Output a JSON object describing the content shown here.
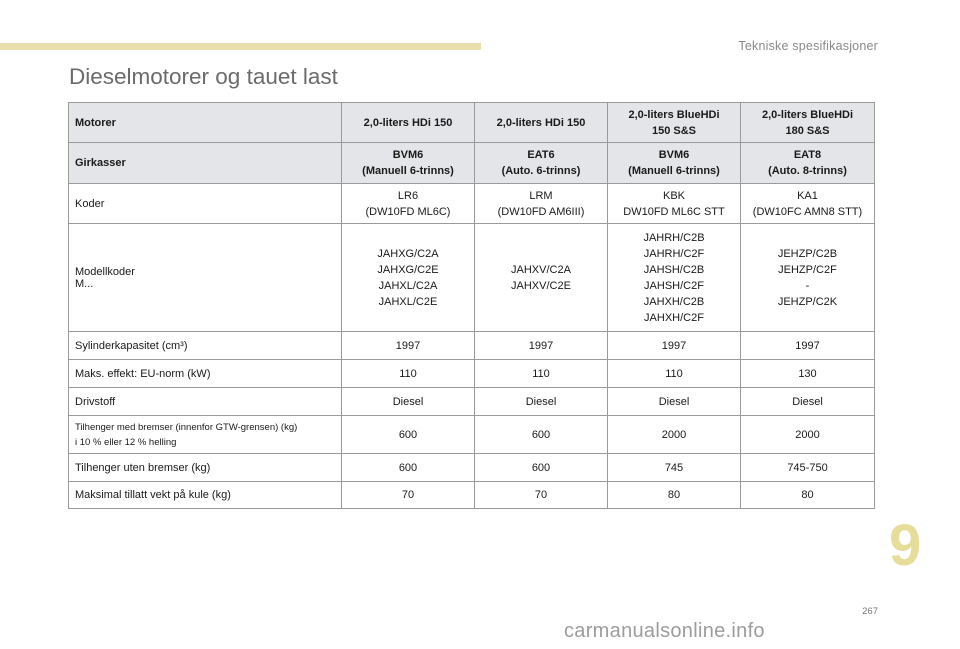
{
  "header": {
    "section_label": "Tekniske spesifikasjoner",
    "title": "Dieselmotorer og tauet last"
  },
  "table": {
    "header_rows": [
      {
        "label": "Motorer",
        "cells": [
          "2,0-liters HDi 150",
          "2,0-liters HDi 150",
          "2,0-liters BlueHDi\n150 S&S",
          "2,0-liters BlueHDi\n180 S&S"
        ]
      },
      {
        "label": "Girkasser",
        "cells": [
          "BVM6\n(Manuell 6-trinns)",
          "EAT6\n(Auto. 6-trinns)",
          "BVM6\n(Manuell 6-trinns)",
          "EAT8\n(Auto. 8-trinns)"
        ]
      }
    ],
    "rows": [
      {
        "label": "Koder",
        "cells": [
          "LR6\n(DW10FD ML6C)",
          "LRM\n(DW10FD AM6III)",
          "KBK\nDW10FD ML6C STT",
          "KA1\n(DW10FC AMN8 STT)"
        ]
      },
      {
        "label": "Modellkoder\nM...",
        "cells": [
          "JAHXG/C2A\nJAHXG/C2E\nJAHXL/C2A\nJAHXL/C2E",
          "JAHXV/C2A\nJAHXV/C2E",
          "JAHRH/C2B\nJAHRH/C2F\nJAHSH/C2B\nJAHSH/C2F\nJAHXH/C2B\nJAHXH/C2F",
          "JEHZP/C2B\nJEHZP/C2F\n-\nJEHZP/C2K"
        ]
      },
      {
        "label": "Sylinderkapasitet (cm³)",
        "cells": [
          "1997",
          "1997",
          "1997",
          "1997"
        ]
      },
      {
        "label": "Maks. effekt: EU-norm (kW)",
        "cells": [
          "110",
          "110",
          "110",
          "130"
        ]
      },
      {
        "label": "Drivstoff",
        "cells": [
          "Diesel",
          "Diesel",
          "Diesel",
          "Diesel"
        ]
      },
      {
        "label": "Tilhenger med bremser (innenfor GTW-grensen) (kg)\ni 10 % eller 12 % helling",
        "cells": [
          "600",
          "600",
          "2000",
          "2000"
        ]
      },
      {
        "label": "Tilhenger uten bremser (kg)",
        "cells": [
          "600",
          "600",
          "745",
          "745-750"
        ]
      },
      {
        "label": "Maksimal tillatt vekt på kule (kg)",
        "cells": [
          "70",
          "70",
          "80",
          "80"
        ]
      }
    ]
  },
  "footer": {
    "chapter_number": "9",
    "page_number": "267",
    "watermark": "carmanualsonline.info"
  },
  "colors": {
    "accent_bar": "#e8dfad",
    "chapter_number": "#e7dd9a",
    "header_row_bg": "#e3e5e8",
    "title": "#6b6b6b"
  }
}
